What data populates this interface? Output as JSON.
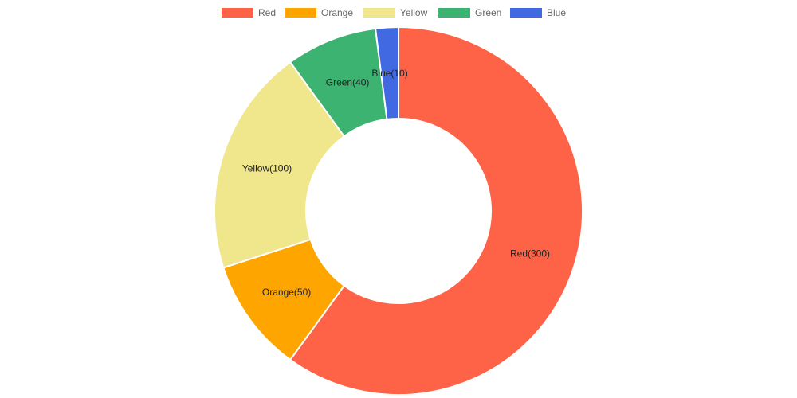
{
  "chart_data": {
    "type": "pie",
    "variant": "doughnut",
    "legend_position": "top",
    "categories": [
      "Red",
      "Orange",
      "Yellow",
      "Green",
      "Blue"
    ],
    "values": [
      300,
      50,
      100,
      40,
      10
    ],
    "colors": [
      "#ff6347",
      "#ffa500",
      "#f0e68c",
      "#3cb371",
      "#4169e1"
    ],
    "data_labels": [
      "Red(300)",
      "Orange(50)",
      "Yellow(100)",
      "Green(40)",
      "Blue(10)"
    ]
  }
}
